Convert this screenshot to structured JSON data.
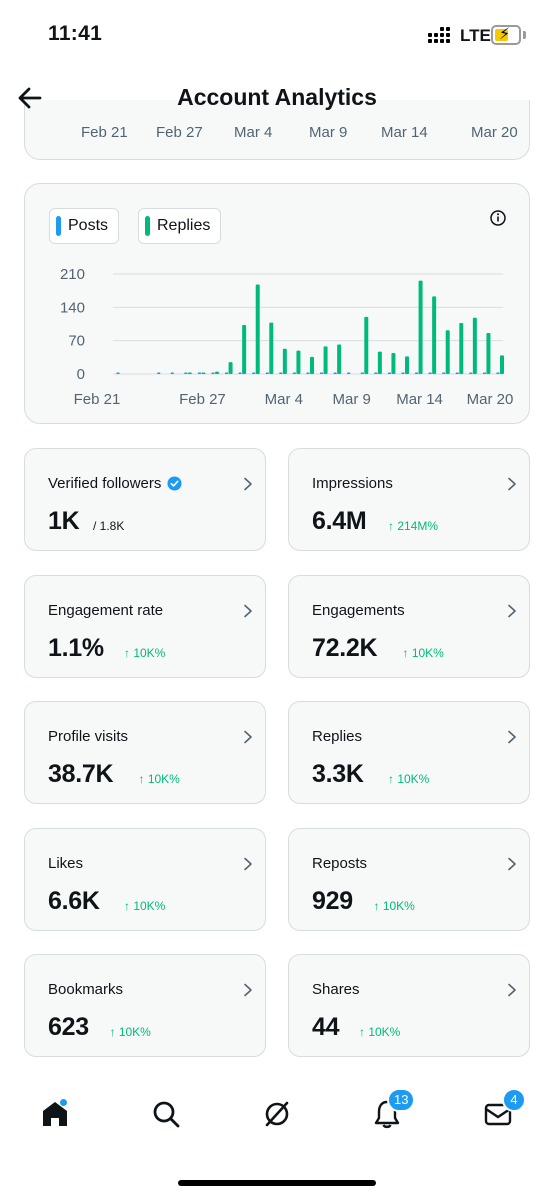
{
  "status_bar": {
    "time": "11:41",
    "network": "LTE"
  },
  "header": {
    "title": "Account Analytics"
  },
  "previous_chart": {
    "x_labels": [
      "Feb 21",
      "Feb 27",
      "Mar 4",
      "Mar 9",
      "Mar 14",
      "Mar 20"
    ]
  },
  "chart_data": {
    "type": "bar",
    "legend": [
      "Posts",
      "Replies"
    ],
    "colors": {
      "posts": "#1d9bf0",
      "replies": "#00ba7c"
    },
    "ylim": [
      0,
      210
    ],
    "y_ticks": [
      "210",
      "140",
      "70",
      "0"
    ],
    "x_tick_labels": [
      "Feb 21",
      "Feb 27",
      "Mar 4",
      "Mar 9",
      "Mar 14",
      "Mar 20"
    ],
    "categories": [
      "Feb 21",
      "Feb 22",
      "Feb 23",
      "Feb 24",
      "Feb 25",
      "Feb 26",
      "Feb 27",
      "Feb 28",
      "Feb 29",
      "Mar 1",
      "Mar 2",
      "Mar 3",
      "Mar 4",
      "Mar 5",
      "Mar 6",
      "Mar 7",
      "Mar 8",
      "Mar 9",
      "Mar 10",
      "Mar 11",
      "Mar 12",
      "Mar 13",
      "Mar 14",
      "Mar 15",
      "Mar 16",
      "Mar 17",
      "Mar 18",
      "Mar 19",
      "Mar 20"
    ],
    "series": [
      {
        "name": "Posts",
        "values": [
          1,
          0,
          0,
          1,
          1,
          1,
          2,
          2,
          3,
          2,
          2,
          3,
          2,
          3,
          2,
          2,
          3,
          2,
          2,
          3,
          2,
          2,
          3,
          2,
          2,
          3,
          3,
          2,
          3
        ]
      },
      {
        "name": "Replies",
        "values": [
          0,
          0,
          0,
          0,
          0,
          1,
          2,
          5,
          25,
          103,
          188,
          108,
          53,
          49,
          36,
          58,
          62,
          0,
          120,
          47,
          44,
          37,
          196,
          163,
          92,
          107,
          118,
          86,
          39
        ]
      }
    ],
    "grid": true
  },
  "stats": [
    {
      "label": "Verified followers",
      "value": "1K",
      "sub": "/ 1.8K",
      "change": "",
      "verified_icon": true
    },
    {
      "label": "Impressions",
      "value": "6.4M",
      "sub": "",
      "change": "↑ 214M%"
    },
    {
      "label": "Engagement rate",
      "value": "1.1%",
      "sub": "",
      "change": "↑ 10K%"
    },
    {
      "label": "Engagements",
      "value": "72.2K",
      "sub": "",
      "change": "↑ 10K%"
    },
    {
      "label": "Profile visits",
      "value": "38.7K",
      "sub": "",
      "change": "↑ 10K%"
    },
    {
      "label": "Replies",
      "value": "3.3K",
      "sub": "",
      "change": "↑ 10K%"
    },
    {
      "label": "Likes",
      "value": "6.6K",
      "sub": "",
      "change": "↑ 10K%"
    },
    {
      "label": "Reposts",
      "value": "929",
      "sub": "",
      "change": "↑ 10K%"
    },
    {
      "label": "Bookmarks",
      "value": "623",
      "sub": "",
      "change": "↑ 10K%"
    },
    {
      "label": "Shares",
      "value": "44",
      "sub": "",
      "change": "↑ 10K%"
    }
  ],
  "tab_bar": {
    "icons": [
      "home-icon",
      "search-icon",
      "grok-icon",
      "notifications-icon",
      "messages-icon"
    ],
    "notifications_badge": "13",
    "messages_badge": "4"
  },
  "colors": {
    "accent": "#1d9bf0",
    "positive": "#00ba7c",
    "card_bg": "#f7f9f9",
    "border": "#d6dce0"
  }
}
